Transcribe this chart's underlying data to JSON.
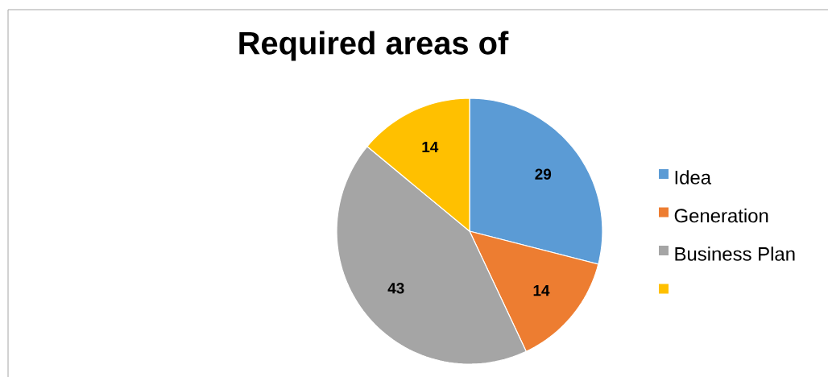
{
  "chart_data": {
    "type": "pie",
    "title": "Required areas of",
    "categories": [
      "Idea",
      "Generation",
      "Business Plan",
      null
    ],
    "values": [
      29,
      14,
      43,
      14
    ],
    "colors": [
      "#5b9bd5",
      "#ed7d31",
      "#a5a5a5",
      "#ffc000"
    ],
    "data_labels": true,
    "legend": "right"
  }
}
